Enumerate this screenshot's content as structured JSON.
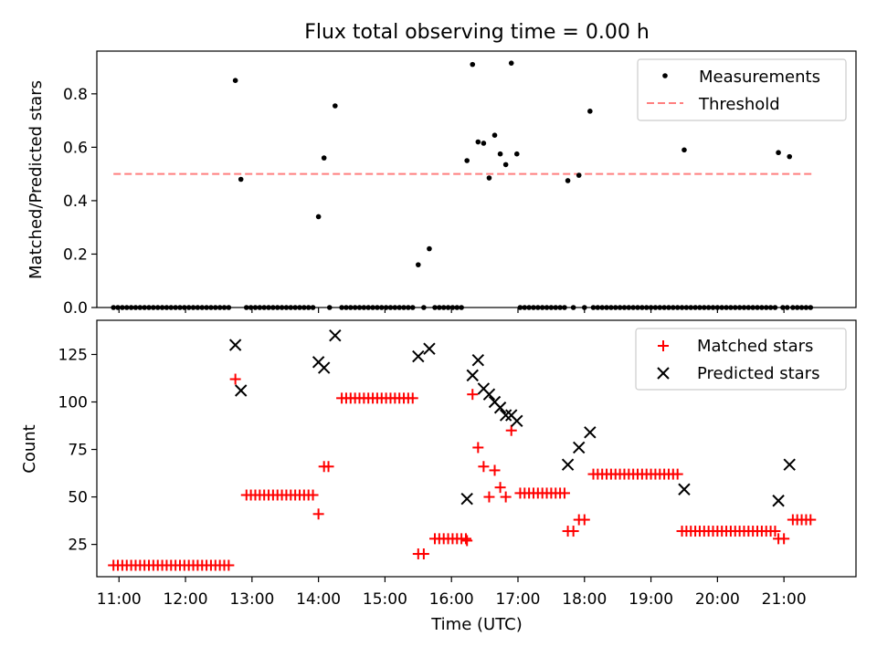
{
  "chart_data": [
    {
      "type": "scatter",
      "title": "Flux total observing time = 0.00 h",
      "ylabel": "Matched/Predicted stars",
      "xlabel": "",
      "xlim": [
        "10:40",
        "22:05"
      ],
      "ylim": [
        0,
        0.96
      ],
      "yticks": [
        "0.0",
        "0.2",
        "0.4",
        "0.6",
        "0.8"
      ],
      "legend_position": "top-right",
      "legend": [
        "Measurements",
        "Threshold"
      ],
      "colors": {
        "measurements": "#000000",
        "threshold": "#ff7f7f"
      },
      "threshold": {
        "name": "Threshold",
        "value": 0.5,
        "x_start": "10:55",
        "x_end": "21:25"
      },
      "series": [
        {
          "name": "Measurements",
          "points": [
            [
              "10:55",
              0
            ],
            [
              "10:59",
              0
            ],
            [
              "11:03",
              0
            ],
            [
              "11:07",
              0
            ],
            [
              "11:11",
              0
            ],
            [
              "11:15",
              0
            ],
            [
              "11:19",
              0
            ],
            [
              "11:23",
              0
            ],
            [
              "11:27",
              0
            ],
            [
              "11:31",
              0
            ],
            [
              "11:35",
              0
            ],
            [
              "11:39",
              0
            ],
            [
              "11:43",
              0
            ],
            [
              "11:47",
              0
            ],
            [
              "11:51",
              0
            ],
            [
              "11:55",
              0
            ],
            [
              "11:59",
              0
            ],
            [
              "12:03",
              0
            ],
            [
              "12:07",
              0
            ],
            [
              "12:11",
              0
            ],
            [
              "12:15",
              0
            ],
            [
              "12:19",
              0
            ],
            [
              "12:23",
              0
            ],
            [
              "12:27",
              0
            ],
            [
              "12:31",
              0
            ],
            [
              "12:35",
              0
            ],
            [
              "12:39",
              0
            ],
            [
              "12:45",
              0.85
            ],
            [
              "12:50",
              0.48
            ],
            [
              "12:55",
              0
            ],
            [
              "12:59",
              0
            ],
            [
              "13:03",
              0
            ],
            [
              "13:07",
              0
            ],
            [
              "13:11",
              0
            ],
            [
              "13:15",
              0
            ],
            [
              "13:19",
              0
            ],
            [
              "13:23",
              0
            ],
            [
              "13:27",
              0
            ],
            [
              "13:31",
              0
            ],
            [
              "13:35",
              0
            ],
            [
              "13:39",
              0
            ],
            [
              "13:43",
              0
            ],
            [
              "13:47",
              0
            ],
            [
              "13:51",
              0
            ],
            [
              "13:55",
              0
            ],
            [
              "14:00",
              0.34
            ],
            [
              "14:05",
              0.56
            ],
            [
              "14:10",
              0
            ],
            [
              "14:15",
              0.755
            ],
            [
              "14:21",
              0
            ],
            [
              "14:25",
              0
            ],
            [
              "14:29",
              0
            ],
            [
              "14:33",
              0
            ],
            [
              "14:37",
              0
            ],
            [
              "14:41",
              0
            ],
            [
              "14:45",
              0
            ],
            [
              "14:49",
              0
            ],
            [
              "14:53",
              0
            ],
            [
              "14:57",
              0
            ],
            [
              "15:01",
              0
            ],
            [
              "15:05",
              0
            ],
            [
              "15:09",
              0
            ],
            [
              "15:13",
              0
            ],
            [
              "15:17",
              0
            ],
            [
              "15:21",
              0
            ],
            [
              "15:25",
              0
            ],
            [
              "15:30",
              0.16
            ],
            [
              "15:35",
              0
            ],
            [
              "15:40",
              0.22
            ],
            [
              "15:45",
              0
            ],
            [
              "15:49",
              0
            ],
            [
              "15:53",
              0
            ],
            [
              "15:57",
              0
            ],
            [
              "16:01",
              0
            ],
            [
              "16:05",
              0
            ],
            [
              "16:09",
              0
            ],
            [
              "16:14",
              0.55
            ],
            [
              "16:19",
              0.91
            ],
            [
              "16:24",
              0.62
            ],
            [
              "16:29",
              0.615
            ],
            [
              "16:34",
              0.485
            ],
            [
              "16:39",
              0.645
            ],
            [
              "16:44",
              0.575
            ],
            [
              "16:49",
              0.535
            ],
            [
              "16:54",
              0.915
            ],
            [
              "16:59",
              0.575
            ],
            [
              "17:02",
              0
            ],
            [
              "17:06",
              0
            ],
            [
              "17:10",
              0
            ],
            [
              "17:14",
              0
            ],
            [
              "17:18",
              0
            ],
            [
              "17:22",
              0
            ],
            [
              "17:26",
              0
            ],
            [
              "17:30",
              0
            ],
            [
              "17:34",
              0
            ],
            [
              "17:38",
              0
            ],
            [
              "17:42",
              0
            ],
            [
              "17:45",
              0.475
            ],
            [
              "17:50",
              0
            ],
            [
              "17:55",
              0.495
            ],
            [
              "18:00",
              0
            ],
            [
              "18:05",
              0.735
            ],
            [
              "18:08",
              0
            ],
            [
              "18:12",
              0
            ],
            [
              "18:16",
              0
            ],
            [
              "18:20",
              0
            ],
            [
              "18:24",
              0
            ],
            [
              "18:28",
              0
            ],
            [
              "18:32",
              0
            ],
            [
              "18:36",
              0
            ],
            [
              "18:40",
              0
            ],
            [
              "18:44",
              0
            ],
            [
              "18:48",
              0
            ],
            [
              "18:52",
              0
            ],
            [
              "18:56",
              0
            ],
            [
              "19:00",
              0
            ],
            [
              "19:04",
              0
            ],
            [
              "19:08",
              0
            ],
            [
              "19:12",
              0
            ],
            [
              "19:16",
              0
            ],
            [
              "19:20",
              0
            ],
            [
              "19:24",
              0
            ],
            [
              "19:28",
              0
            ],
            [
              "19:32",
              0
            ],
            [
              "19:30",
              0.59
            ],
            [
              "19:36",
              0
            ],
            [
              "19:40",
              0
            ],
            [
              "19:44",
              0
            ],
            [
              "19:48",
              0
            ],
            [
              "19:52",
              0
            ],
            [
              "19:56",
              0
            ],
            [
              "20:00",
              0
            ],
            [
              "20:04",
              0
            ],
            [
              "20:08",
              0
            ],
            [
              "20:12",
              0
            ],
            [
              "20:16",
              0
            ],
            [
              "20:20",
              0
            ],
            [
              "20:24",
              0
            ],
            [
              "20:28",
              0
            ],
            [
              "20:32",
              0
            ],
            [
              "20:36",
              0
            ],
            [
              "20:40",
              0
            ],
            [
              "20:44",
              0
            ],
            [
              "20:48",
              0
            ],
            [
              "20:52",
              0
            ],
            [
              "20:55",
              0.58
            ],
            [
              "20:59",
              0
            ],
            [
              "21:03",
              0
            ],
            [
              "21:05",
              0.565
            ],
            [
              "21:08",
              0
            ],
            [
              "21:12",
              0
            ],
            [
              "21:16",
              0
            ],
            [
              "21:20",
              0
            ],
            [
              "21:24",
              0
            ]
          ]
        }
      ]
    },
    {
      "type": "scatter",
      "title": "",
      "ylabel": "Count",
      "xlabel": "Time (UTC)",
      "xlim": [
        "10:40",
        "22:05"
      ],
      "ylim": [
        8,
        143
      ],
      "xticks": [
        "11:00",
        "12:00",
        "13:00",
        "14:00",
        "15:00",
        "16:00",
        "17:00",
        "18:00",
        "19:00",
        "20:00",
        "21:00"
      ],
      "yticks": [
        "25",
        "50",
        "75",
        "100",
        "125"
      ],
      "legend_position": "top-right",
      "legend": [
        "Matched stars",
        "Predicted stars"
      ],
      "colors": {
        "matched": "#ff0000",
        "predicted": "#000000"
      },
      "series": [
        {
          "name": "Matched stars",
          "marker": "+",
          "segments": [
            {
              "start": "10:55",
              "end": "12:39",
              "step_min": 4,
              "value": 14
            },
            {
              "start": "12:55",
              "end": "13:55",
              "step_min": 4,
              "value": 51
            },
            {
              "start": "14:21",
              "end": "15:25",
              "step_min": 4,
              "value": 102
            },
            {
              "start": "15:45",
              "end": "16:13",
              "step_min": 4,
              "value": 28
            },
            {
              "start": "17:02",
              "end": "17:42",
              "step_min": 4,
              "value": 52
            },
            {
              "start": "18:08",
              "end": "19:24",
              "step_min": 4,
              "value": 62
            },
            {
              "start": "19:28",
              "end": "20:52",
              "step_min": 4,
              "value": 32
            },
            {
              "start": "21:08",
              "end": "21:24",
              "step_min": 4,
              "value": 38
            }
          ],
          "points": [
            [
              "12:45",
              112
            ],
            [
              "14:00",
              41
            ],
            [
              "14:05",
              66
            ],
            [
              "14:09",
              66
            ],
            [
              "15:30",
              20
            ],
            [
              "15:35",
              20
            ],
            [
              "16:14",
              27
            ],
            [
              "16:19",
              104
            ],
            [
              "16:24",
              76
            ],
            [
              "16:29",
              66
            ],
            [
              "16:34",
              50
            ],
            [
              "16:39",
              64
            ],
            [
              "16:44",
              55
            ],
            [
              "16:49",
              50
            ],
            [
              "16:54",
              85
            ],
            [
              "17:45",
              32
            ],
            [
              "17:50",
              32
            ],
            [
              "17:55",
              38
            ],
            [
              "18:00",
              38
            ],
            [
              "20:55",
              28
            ],
            [
              "21:00",
              28
            ]
          ]
        },
        {
          "name": "Predicted stars",
          "marker": "x",
          "points": [
            [
              "12:45",
              130
            ],
            [
              "12:50",
              106
            ],
            [
              "14:00",
              121
            ],
            [
              "14:05",
              118
            ],
            [
              "14:15",
              135
            ],
            [
              "15:30",
              124
            ],
            [
              "15:40",
              128
            ],
            [
              "16:14",
              49
            ],
            [
              "16:19",
              114
            ],
            [
              "16:24",
              122
            ],
            [
              "16:29",
              107
            ],
            [
              "16:34",
              104
            ],
            [
              "16:39",
              100
            ],
            [
              "16:44",
              97
            ],
            [
              "16:49",
              93
            ],
            [
              "16:54",
              93
            ],
            [
              "16:59",
              90
            ],
            [
              "17:45",
              67
            ],
            [
              "17:55",
              76
            ],
            [
              "18:05",
              84
            ],
            [
              "19:30",
              54
            ],
            [
              "20:55",
              48
            ],
            [
              "21:05",
              67
            ]
          ]
        }
      ]
    }
  ]
}
